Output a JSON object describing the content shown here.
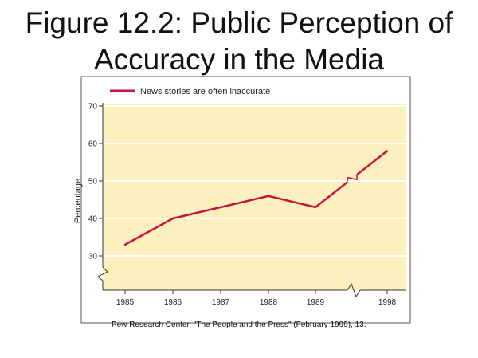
{
  "slide": {
    "title_line1": "Figure 12.2: Public Perception of",
    "title_line2": "Accuracy in the Media",
    "source": "Pew Research Center, \"The People and the Press\" (February 1999), 13."
  },
  "chart_data": {
    "type": "line",
    "title": "Figure 12.2: Public Perception of Accuracy in the Media",
    "xlabel": "",
    "ylabel": "Percentage",
    "x_ticks": [
      "1985",
      "1986",
      "1987",
      "1988",
      "1989",
      "1998"
    ],
    "y_ticks": [
      30,
      40,
      50,
      60,
      70
    ],
    "ylim": [
      30,
      70
    ],
    "axis_breaks": {
      "x": "between 1989 and 1998",
      "y": "below 30"
    },
    "grid": "horizontal",
    "legend_position": "top-left",
    "series": [
      {
        "name": "News stories are often inaccurate",
        "color": "#c8143c",
        "points": [
          {
            "x": "1985",
            "y": 33
          },
          {
            "x": "1986",
            "y": 40
          },
          {
            "x": "1988",
            "y": 46
          },
          {
            "x": "1989",
            "y": 43
          },
          {
            "x": "1998",
            "y": 58
          }
        ]
      }
    ],
    "colors": {
      "plot_background": "#fcf0bf",
      "grid": "#ffffff",
      "line": "#c8143c"
    }
  }
}
